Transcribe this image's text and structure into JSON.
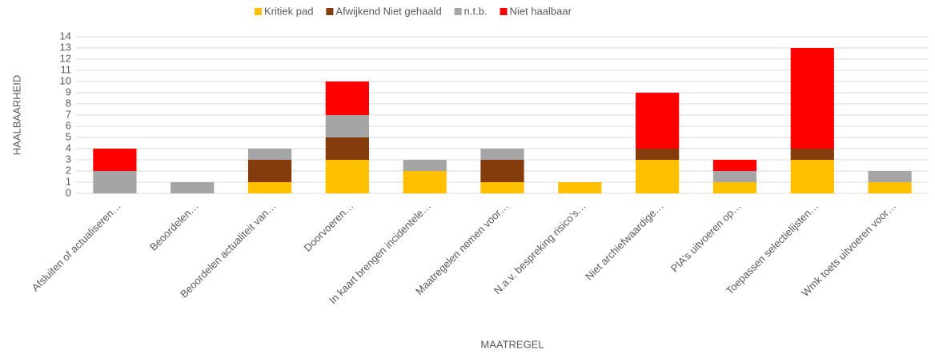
{
  "chart_data": {
    "type": "bar",
    "stacked": true,
    "xlabel": "MAATREGEL",
    "ylabel": "HAALBAARHEID",
    "categories": [
      "Afsluiten of actualiseren…",
      "Beoordelen…",
      "Beoordelen actualiteit van…",
      "Doorvoeren…",
      "In kaart brengen incidentele…",
      "Maatregelen nemen voor…",
      "N.a.v. bespreking risico’s…",
      "Niet archiefwaardige…",
      "PIA’s uitvoeren op…",
      "Toepassen selectielijsten…",
      "Wmk toets uitvoeren voor…"
    ],
    "series": [
      {
        "name": "Kritiek pad",
        "color": "#ffc000",
        "values": [
          0,
          0,
          1,
          3,
          2,
          1,
          1,
          3,
          1,
          3,
          1
        ]
      },
      {
        "name": "Afwijkend Niet gehaald",
        "color": "#843c0c",
        "values": [
          0,
          0,
          2,
          2,
          0,
          2,
          0,
          1,
          0,
          1,
          0
        ]
      },
      {
        "name": "n.t.b.",
        "color": "#a5a5a5",
        "values": [
          2,
          1,
          1,
          2,
          1,
          1,
          0,
          0,
          1,
          0,
          1
        ]
      },
      {
        "name": "Niet haalbaar",
        "color": "#ff0000",
        "values": [
          2,
          0,
          0,
          3,
          0,
          0,
          0,
          5,
          1,
          9,
          0
        ]
      }
    ],
    "ylim": [
      0,
      14
    ],
    "yticks": [
      0,
      1,
      2,
      3,
      4,
      5,
      6,
      7,
      8,
      9,
      10,
      11,
      12,
      13,
      14
    ],
    "grid": true,
    "legend": "top"
  }
}
